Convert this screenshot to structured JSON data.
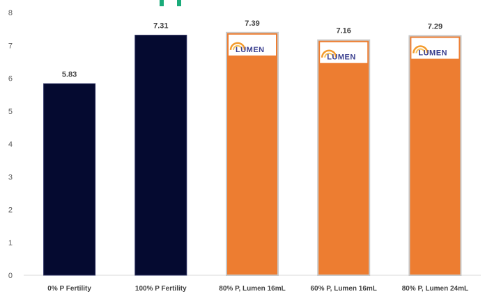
{
  "chart_data": {
    "type": "bar",
    "categories": [
      "0% P Fertility",
      "100% P Fertility",
      "80% P, Lumen 16mL",
      "60% P, Lumen 16mL",
      "80% P, Lumen 24mL"
    ],
    "values": [
      5.83,
      7.31,
      7.39,
      7.16,
      7.29
    ],
    "data_labels": [
      "5.83",
      "7.31",
      "7.39",
      "7.16",
      "7.29"
    ],
    "bar_colors": [
      "#050a30",
      "#050a30",
      "#ed7d31",
      "#ed7d31",
      "#ed7d31"
    ],
    "logo_on_bars": [
      false,
      false,
      true,
      true,
      true
    ],
    "title": "",
    "xlabel": "",
    "ylabel": "",
    "ylim": [
      0,
      8
    ],
    "yticks": [
      0,
      1,
      2,
      3,
      4,
      5,
      6,
      7,
      8
    ],
    "grid": false,
    "legend": "none"
  },
  "logo": {
    "text": "LUMEN",
    "text_color": "#3a3f8f",
    "sun_color": "#f39a2b"
  },
  "top_mark": {
    "color": "#1aab7a"
  }
}
